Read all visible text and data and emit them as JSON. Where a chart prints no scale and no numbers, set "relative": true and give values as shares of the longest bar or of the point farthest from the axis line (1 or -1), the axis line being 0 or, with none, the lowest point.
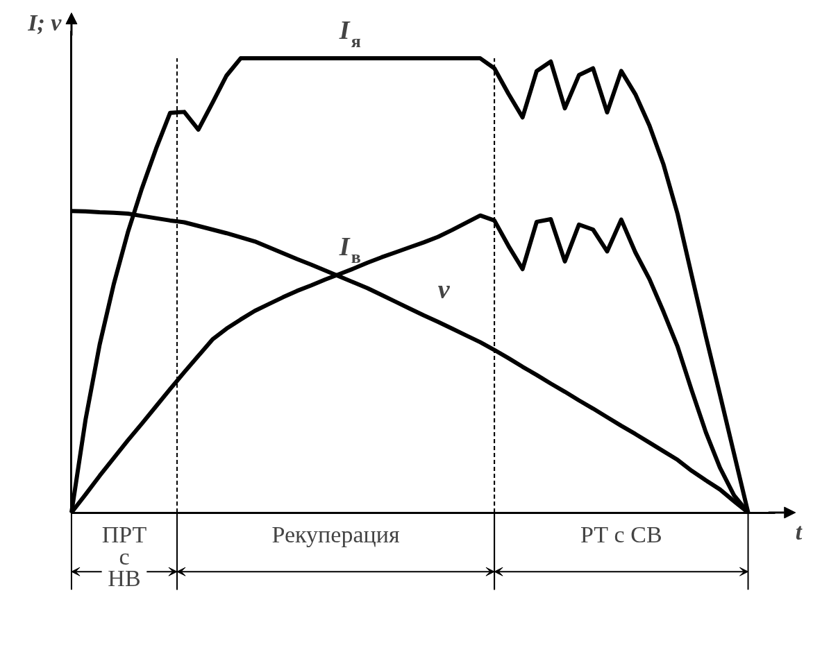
{
  "chart_data": {
    "type": "line",
    "relative": true,
    "xlabel": "t",
    "ylabel": "I; v",
    "categories": [
      null,
      null,
      null,
      null,
      null,
      null,
      null,
      null,
      null,
      null,
      null,
      null,
      null,
      null,
      null,
      null,
      null,
      null,
      null,
      null,
      null,
      null,
      null,
      null,
      null,
      null,
      null,
      null,
      null,
      null,
      null,
      null,
      null,
      null,
      null,
      null,
      null,
      null,
      null,
      null,
      null,
      null,
      null,
      null,
      null,
      null,
      null,
      null,
      null
    ],
    "series": [
      {
        "name": "I$_{я}$",
        "color": "#000000",
        "values": [
          0,
          0.205,
          0.37,
          0.503,
          0.617,
          0.714,
          0.801,
          0.88,
          0.882,
          0.843,
          0.902,
          0.962,
          1,
          1,
          1,
          1,
          1,
          1,
          1,
          1,
          1,
          1,
          1,
          1,
          1,
          1,
          1,
          1,
          1,
          1,
          0.978,
          0.922,
          0.87,
          0.972,
          0.993,
          0.89,
          0.963,
          0.978,
          0.881,
          0.972,
          0.921,
          0.852,
          0.766,
          0.657,
          0.522,
          0.388,
          0.26,
          0.13,
          0
        ]
      },
      {
        "name": "I$_{в}$",
        "color": "#000000",
        "values": [
          0,
          0.04,
          0.081,
          0.12,
          0.159,
          0.196,
          0.234,
          0.272,
          0.309,
          0.345,
          0.381,
          0.405,
          0.425,
          0.444,
          0.459,
          0.474,
          0.488,
          0.5,
          0.513,
          0.525,
          0.537,
          0.55,
          0.562,
          0.573,
          0.584,
          0.595,
          0.607,
          0.622,
          0.638,
          0.654,
          0.643,
          0.587,
          0.536,
          0.64,
          0.646,
          0.553,
          0.634,
          0.623,
          0.575,
          0.645,
          0.573,
          0.514,
          0.442,
          0.365,
          0.269,
          0.177,
          0.099,
          0.038,
          0
        ]
      },
      {
        "name": "v",
        "color": "#000000",
        "values": [
          0.664,
          0.663,
          0.661,
          0.66,
          0.658,
          0.653,
          0.648,
          0.643,
          0.639,
          0.631,
          0.623,
          0.615,
          0.606,
          0.597,
          0.584,
          0.571,
          0.558,
          0.546,
          0.533,
          0.52,
          0.507,
          0.494,
          0.479,
          0.464,
          0.449,
          0.434,
          0.42,
          0.405,
          0.39,
          0.375,
          0.358,
          0.34,
          0.321,
          0.303,
          0.284,
          0.266,
          0.247,
          0.229,
          0.21,
          0.191,
          0.173,
          0.154,
          0.135,
          0.116,
          0.092,
          0.071,
          0.051,
          0.025,
          0
        ]
      }
    ],
    "annotations": [
      "ПРТ с НВ",
      "Рекуперация",
      "РТ с СВ"
    ]
  }
}
